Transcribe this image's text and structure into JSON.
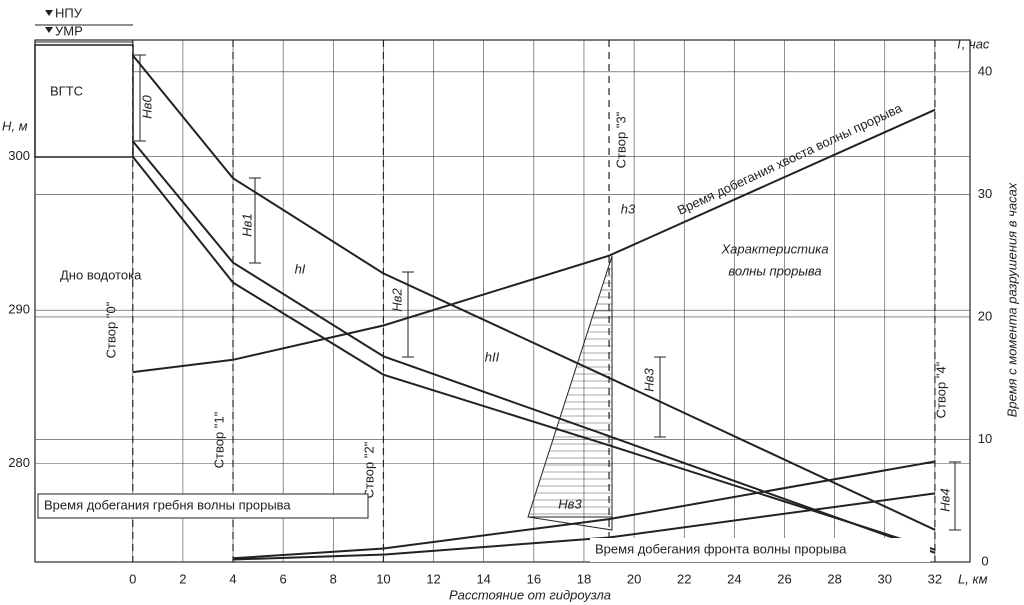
{
  "chart_data": {
    "type": "line",
    "x_label": "Расстояние от гидроузла",
    "x_unit": "L, км",
    "y_label": "H, м",
    "y2_label": "T, час",
    "y2_title": "Время с момента разрушения в часах",
    "structure_label": "ВГТС",
    "levels": [
      "НПУ",
      "УМР"
    ],
    "x": [
      0,
      4,
      10,
      19,
      32
    ],
    "xlim": [
      -3.9,
      33.4
    ],
    "xticks": [
      0,
      2,
      4,
      6,
      8,
      10,
      12,
      14,
      16,
      18,
      20,
      22,
      24,
      26,
      28,
      30,
      32
    ],
    "ylim": [
      273.6,
      307.6
    ],
    "yticks": [
      280,
      290,
      300
    ],
    "y2lim": [
      0,
      42.6
    ],
    "y2ticks": [
      0,
      10,
      20,
      30,
      40
    ],
    "grid": true,
    "series": [
      {
        "color": "#222",
        "values": [
          306.6,
          298.6,
          292.4,
          285.6,
          275.7
        ]
      },
      {
        "color": "#222",
        "values": [
          301.0,
          293.1,
          287.0,
          281.8,
          274.2
        ]
      },
      {
        "name": "Дно водотока",
        "color": "#222",
        "values": [
          300.0,
          291.8,
          285.8,
          281.2,
          274.4
        ]
      },
      {
        "name": "Время добегания хвоста волны прорыва",
        "color": "#222",
        "axis": "y2",
        "values": [
          15.5,
          16.5,
          19.3,
          25.0,
          36.9
        ]
      },
      {
        "name": "Время добегания гребня волны прорыва",
        "color": "#222",
        "axis": "y2",
        "values": [
          null,
          0.3,
          1.1,
          3.5,
          8.2
        ]
      },
      {
        "name": "Время добегания фронта волны прорыва",
        "color": "#222",
        "axis": "y2",
        "values": [
          null,
          0.2,
          0.6,
          2.0,
          5.6
        ]
      }
    ],
    "sections": [
      {
        "x": 0,
        "label": "Створ \"0\""
      },
      {
        "x": 4,
        "label": "Створ \"1\""
      },
      {
        "x": 10,
        "label": "Створ \"2\""
      },
      {
        "x": 19,
        "label": "Створ \"3\""
      },
      {
        "x": 32,
        "label": "Створ \"4\""
      }
    ],
    "annotations": [
      "Hв0",
      "Hв1",
      "Hв2",
      "Hв3",
      "Hв4",
      "Hв3",
      "hI",
      "hII",
      "h3",
      "Характеристика",
      "волны прорыва"
    ]
  }
}
